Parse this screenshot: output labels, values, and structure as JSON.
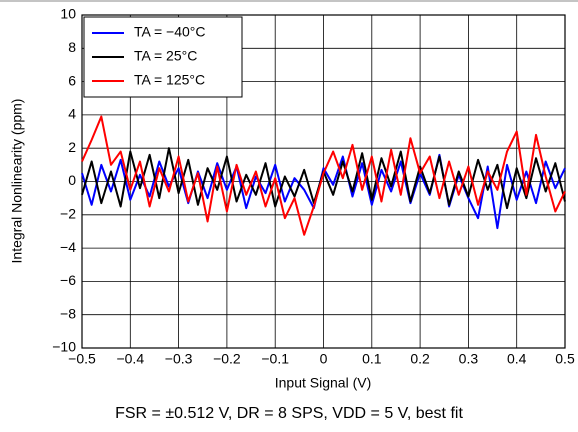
{
  "chart_data": {
    "type": "line",
    "x_label": "Input Signal (V)",
    "y_label": "Integral Nonlinearity (ppm)",
    "caption": "FSR = ±0.512 V, DR = 8 SPS, VDD = 5 V, best fit",
    "xlim": [
      -0.5,
      0.5
    ],
    "ylim": [
      -10,
      10
    ],
    "grid": true,
    "legend": "upper-left",
    "xticks": [
      {
        "value": -0.5,
        "label": "−0.5"
      },
      {
        "value": -0.4,
        "label": "−0.4"
      },
      {
        "value": -0.3,
        "label": "−0.3"
      },
      {
        "value": -0.2,
        "label": "−0.2"
      },
      {
        "value": -0.1,
        "label": "−0.1"
      },
      0,
      0.1,
      0.2,
      0.3,
      0.4,
      0.5
    ],
    "yticks": [
      {
        "value": -10,
        "label": "−10"
      },
      {
        "value": -8,
        "label": "−8"
      },
      {
        "value": -6,
        "label": "−6"
      },
      {
        "value": -4,
        "label": "−4"
      },
      {
        "value": -2,
        "label": "−2"
      },
      0,
      2,
      4,
      6,
      8,
      10
    ],
    "x": [
      -0.5,
      -0.48,
      -0.46,
      -0.44,
      -0.42,
      -0.4,
      -0.38,
      -0.36,
      -0.34,
      -0.32,
      -0.3,
      -0.28,
      -0.26,
      -0.24,
      -0.22,
      -0.2,
      -0.18,
      -0.16,
      -0.14,
      -0.12,
      -0.1,
      -0.08,
      -0.06,
      -0.04,
      -0.02,
      0,
      0.02,
      0.04,
      0.06,
      0.08,
      0.1,
      0.12,
      0.14,
      0.16,
      0.18,
      0.2,
      0.22,
      0.24,
      0.26,
      0.28,
      0.3,
      0.32,
      0.34,
      0.36,
      0.38,
      0.4,
      0.42,
      0.44,
      0.46,
      0.48,
      0.5
    ],
    "series": [
      {
        "name": "TA = −40°C",
        "color": "#0000ff",
        "values": [
          0.5,
          -1.4,
          1.0,
          -0.6,
          1.3,
          -1.1,
          0.4,
          -0.9,
          1.2,
          -0.3,
          0.8,
          -1.3,
          0.6,
          -1.0,
          1.1,
          -0.5,
          0.9,
          -1.6,
          0.3,
          -0.7,
          1.0,
          -1.2,
          0.2,
          -0.5,
          -1.6,
          0.8,
          -0.2,
          1.5,
          -0.9,
          1.1,
          -1.4,
          0.7,
          -0.6,
          1.2,
          -1.3,
          0.5,
          -0.8,
          1.6,
          -1.5,
          0.4,
          -1.0,
          -2.2,
          0.9,
          -2.8,
          1.0,
          -1.1,
          0.6,
          -1.3,
          1.2,
          -0.4,
          0.8
        ]
      },
      {
        "name": "TA = 25°C",
        "color": "#000000",
        "values": [
          -0.8,
          1.2,
          -1.3,
          0.6,
          -1.5,
          1.8,
          -0.4,
          1.6,
          -1.0,
          2.0,
          -0.7,
          1.3,
          -1.4,
          0.8,
          -0.5,
          1.5,
          -1.2,
          0.4,
          -0.8,
          1.1,
          -1.5,
          0.3,
          -0.9,
          0.7,
          -1.3,
          0.6,
          -0.8,
          1.2,
          -0.6,
          1.7,
          -1.1,
          1.4,
          -0.3,
          1.8,
          -1.2,
          0.9,
          -0.7,
          1.5,
          -1.4,
          0.6,
          -0.9,
          1.3,
          -0.5,
          1.0,
          -1.6,
          0.8,
          -1.0,
          1.4,
          -0.6,
          1.1,
          -1.2
        ]
      },
      {
        "name": "TA = 125°C",
        "color": "#ff0000",
        "values": [
          1.2,
          2.5,
          3.9,
          1.0,
          1.8,
          -0.5,
          1.2,
          -1.5,
          0.8,
          -0.6,
          1.5,
          -1.2,
          0.5,
          -2.4,
          0.9,
          -1.8,
          1.0,
          -0.8,
          0.6,
          -1.5,
          0.2,
          -2.2,
          -1.0,
          -3.2,
          -1.5,
          0.5,
          1.8,
          0.2,
          2.2,
          -0.5,
          1.5,
          -1.2,
          1.9,
          -0.8,
          2.6,
          0.5,
          1.5,
          -1.0,
          1.2,
          -0.8,
          0.9,
          -1.4,
          0.6,
          -0.5,
          1.8,
          3.0,
          -0.8,
          2.8,
          0.3,
          -1.8,
          -0.6
        ]
      }
    ]
  }
}
